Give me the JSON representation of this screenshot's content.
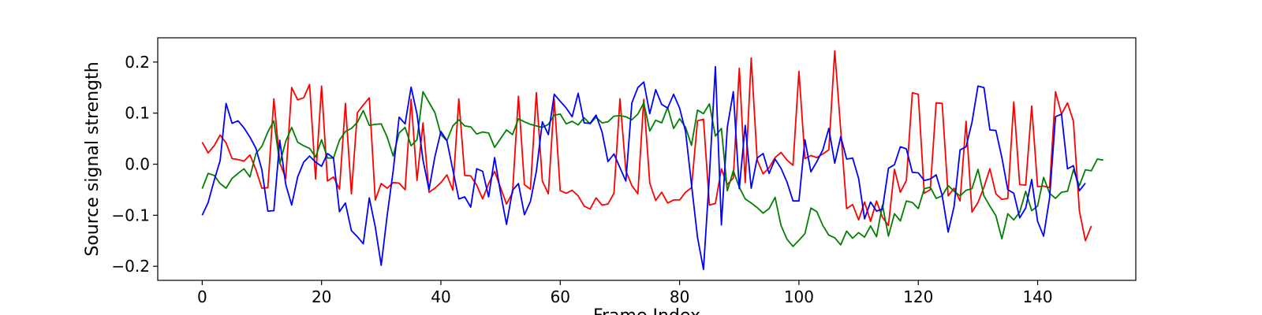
{
  "chart_data": {
    "type": "line",
    "title": "",
    "xlabel": "Frame Index",
    "ylabel": "Source signal strength",
    "xlim": [
      -7.45,
      156.45
    ],
    "ylim": [
      -0.2275,
      0.2475
    ],
    "xticks": [
      0,
      20,
      40,
      60,
      80,
      100,
      120,
      140
    ],
    "yticks": [
      0.2,
      0.1,
      0.0,
      -0.1,
      -0.2
    ],
    "xtick_labels": [
      "0",
      "20",
      "40",
      "60",
      "80",
      "100",
      "120",
      "140"
    ],
    "ytick_labels": [
      "0.2",
      "0.1",
      "0.0",
      "−0.1",
      "−0.2"
    ],
    "grid": false,
    "series": [
      {
        "color": "#ff0000",
        "values": [
          0.043,
          0.022,
          0.036,
          0.057,
          0.042,
          0.011,
          0.009,
          0.006,
          0.018,
          -0.011,
          -0.047,
          -0.046,
          0.128,
          0.003,
          -0.028,
          0.15,
          0.126,
          0.13,
          0.156,
          -0.029,
          0.153,
          -0.033,
          -0.025,
          -0.049,
          0.119,
          -0.058,
          0.101,
          0.116,
          0.13,
          -0.07,
          -0.038,
          -0.047,
          -0.036,
          -0.037,
          -0.05,
          0.127,
          -0.032,
          0.081,
          -0.055,
          -0.047,
          -0.036,
          -0.021,
          -0.051,
          0.128,
          -0.022,
          -0.023,
          -0.041,
          -0.068,
          -0.038,
          -0.014,
          -0.046,
          -0.078,
          -0.056,
          0.133,
          -0.04,
          -0.049,
          0.14,
          -0.033,
          -0.058,
          0.127,
          -0.052,
          -0.057,
          -0.051,
          -0.062,
          -0.082,
          -0.088,
          -0.066,
          -0.08,
          -0.078,
          -0.057,
          0.128,
          -0.013,
          -0.042,
          -0.058,
          0.127,
          -0.037,
          -0.071,
          -0.055,
          -0.076,
          -0.07,
          -0.07,
          -0.055,
          -0.046,
          0.085,
          0.088,
          -0.08,
          -0.077,
          -0.009,
          -0.04,
          -0.027,
          0.188,
          -0.036,
          0.208,
          0.008,
          -0.019,
          -0.007,
          0.013,
          0.023,
          0.008,
          -0.002,
          0.182,
          0.011,
          0.017,
          0.013,
          0.02,
          0.028,
          0.222,
          0.067,
          -0.087,
          -0.079,
          -0.109,
          -0.074,
          -0.112,
          -0.072,
          -0.104,
          -0.12,
          -0.01,
          -0.055,
          -0.032,
          0.14,
          0.137,
          -0.057,
          -0.05,
          0.12,
          0.119,
          -0.062,
          -0.047,
          -0.072,
          0.084,
          -0.094,
          -0.075,
          -0.045,
          -0.009,
          -0.058,
          -0.069,
          -0.067,
          0.122,
          -0.04,
          -0.041,
          0.114,
          -0.044,
          -0.043,
          -0.046,
          0.142,
          0.098,
          0.12,
          0.084,
          -0.092,
          -0.15,
          -0.121
        ]
      },
      {
        "color": "#008000",
        "values": [
          -0.048,
          -0.018,
          -0.022,
          -0.038,
          -0.047,
          -0.028,
          -0.018,
          -0.009,
          -0.025,
          0.021,
          0.035,
          0.063,
          0.085,
          0.001,
          0.045,
          0.072,
          0.043,
          0.036,
          0.031,
          0.014,
          0.048,
          0.012,
          0.012,
          0.047,
          0.064,
          0.07,
          0.082,
          0.105,
          0.076,
          0.078,
          0.079,
          0.053,
          0.016,
          0.061,
          0.072,
          0.036,
          0.048,
          0.142,
          0.121,
          0.101,
          0.058,
          0.046,
          0.075,
          0.087,
          0.075,
          0.073,
          0.059,
          0.063,
          0.061,
          0.033,
          0.05,
          0.067,
          0.058,
          0.089,
          0.083,
          0.078,
          0.075,
          0.072,
          0.078,
          0.096,
          0.098,
          0.079,
          0.084,
          0.077,
          0.091,
          0.079,
          0.092,
          0.081,
          0.083,
          0.094,
          0.095,
          0.093,
          0.087,
          0.098,
          0.12,
          0.065,
          0.086,
          0.081,
          0.111,
          0.07,
          0.089,
          0.072,
          0.037,
          0.106,
          0.099,
          0.118,
          0.055,
          0.07,
          -0.052,
          -0.013,
          -0.045,
          -0.068,
          -0.076,
          -0.085,
          -0.096,
          -0.087,
          -0.065,
          -0.12,
          -0.147,
          -0.161,
          -0.149,
          -0.136,
          -0.086,
          -0.093,
          -0.12,
          -0.139,
          -0.144,
          -0.158,
          -0.131,
          -0.145,
          -0.134,
          -0.143,
          -0.121,
          -0.142,
          -0.08,
          -0.141,
          -0.097,
          -0.111,
          -0.072,
          -0.075,
          -0.087,
          -0.048,
          -0.045,
          -0.067,
          -0.062,
          -0.042,
          -0.053,
          -0.062,
          -0.051,
          -0.048,
          -0.01,
          -0.062,
          -0.082,
          -0.101,
          -0.146,
          -0.097,
          -0.109,
          -0.094,
          -0.053,
          -0.091,
          -0.082,
          -0.026,
          -0.057,
          -0.067,
          -0.055,
          -0.053,
          -0.011,
          -0.042,
          -0.011,
          -0.013,
          0.01,
          0.008
        ]
      },
      {
        "color": "#0000ff",
        "values": [
          -0.1,
          -0.075,
          -0.032,
          0.007,
          0.119,
          0.08,
          0.085,
          0.071,
          0.053,
          0.031,
          -0.011,
          -0.092,
          -0.091,
          0.047,
          -0.04,
          -0.08,
          -0.025,
          0.004,
          0.016,
          0.004,
          -0.004,
          0.021,
          0.012,
          -0.093,
          -0.076,
          -0.13,
          -0.142,
          -0.156,
          -0.066,
          -0.123,
          -0.198,
          -0.1,
          -0.013,
          0.092,
          0.079,
          0.151,
          0.098,
          0.008,
          -0.05,
          0.015,
          0.064,
          0.046,
          -0.011,
          -0.068,
          -0.064,
          -0.084,
          -0.009,
          -0.014,
          -0.064,
          0.013,
          -0.056,
          -0.118,
          -0.051,
          -0.038,
          -0.099,
          -0.073,
          -0.014,
          0.083,
          0.058,
          0.137,
          0.123,
          0.11,
          0.093,
          0.139,
          0.081,
          0.08,
          0.096,
          0.063,
          0.005,
          0.02,
          -0.007,
          -0.033,
          0.12,
          0.15,
          0.161,
          0.099,
          0.146,
          0.117,
          0.11,
          0.137,
          0.11,
          0.064,
          -0.04,
          -0.143,
          -0.206,
          -0.023,
          0.191,
          -0.119,
          0.072,
          0.142,
          -0.048,
          0.076,
          -0.047,
          0.012,
          0.021,
          -0.018,
          0.01,
          -0.008,
          -0.035,
          -0.072,
          -0.072,
          0.048,
          -0.015,
          0.005,
          0.028,
          0.07,
          0.002,
          0.054,
          0.01,
          0.012,
          -0.028,
          -0.107,
          -0.074,
          -0.092,
          -0.088,
          -0.008,
          -0.001,
          0.034,
          0.03,
          -0.016,
          -0.017,
          -0.032,
          -0.029,
          -0.021,
          -0.061,
          -0.133,
          -0.083,
          0.028,
          0.034,
          0.082,
          0.153,
          0.15,
          0.067,
          0.066,
          0.013,
          -0.05,
          -0.057,
          -0.105,
          -0.086,
          -0.03,
          -0.112,
          -0.141,
          -0.066,
          0.093,
          0.098,
          -0.009,
          -0.003,
          -0.052,
          -0.037
        ]
      }
    ]
  }
}
